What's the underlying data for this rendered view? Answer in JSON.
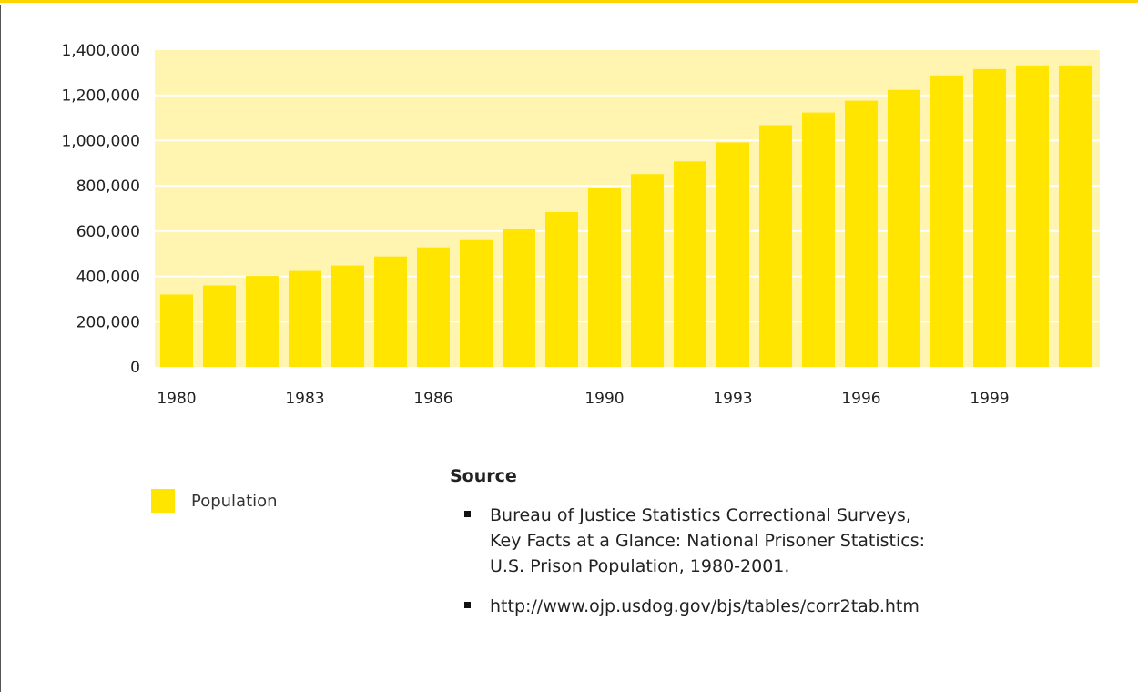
{
  "chart_data": {
    "type": "bar",
    "title": "",
    "xlabel": "",
    "ylabel": "",
    "categories": [
      "1980",
      "1981",
      "1982",
      "1983",
      "1984",
      "1985",
      "1986",
      "1987",
      "1988",
      "1989",
      "1990",
      "1991",
      "1992",
      "1993",
      "1994",
      "1995",
      "1996",
      "1997",
      "1998",
      "1999",
      "2000",
      "2001"
    ],
    "x_tick_labels": [
      "1980",
      "1983",
      "1986",
      "1990",
      "1993",
      "1996",
      "1999"
    ],
    "y_tick_labels": [
      "0",
      "200,000",
      "400,000",
      "600,000",
      "800,000",
      "1,000,000",
      "1,200,000",
      "1,400,000"
    ],
    "y_ticks": [
      0,
      200000,
      400000,
      600000,
      800000,
      1000000,
      1200000,
      1400000
    ],
    "ylim": [
      0,
      1400000
    ],
    "series": [
      {
        "name": "Population",
        "values": [
          320000,
          360000,
          402000,
          424000,
          448000,
          488000,
          528000,
          560000,
          608000,
          684000,
          792000,
          852000,
          908000,
          992000,
          1068000,
          1124000,
          1176000,
          1224000,
          1288000,
          1316000,
          1332000,
          1332000
        ]
      }
    ],
    "colors": {
      "bar": "#ffe500",
      "plot_background": "#fff4b0",
      "grid": "#ffffff"
    },
    "grid": true,
    "legend_position": "bottom-left"
  },
  "legend": {
    "label": "Population"
  },
  "source": {
    "heading": "Source",
    "items": [
      "Bureau of Justice Statistics Correctional Surveys,\n Key Facts at a Glance: National Prisoner Statistics:\n U.S. Prison Population, 1980-2001.",
      "http://www.ojp.usdog.gov/bjs/tables/corr2tab.htm"
    ]
  }
}
